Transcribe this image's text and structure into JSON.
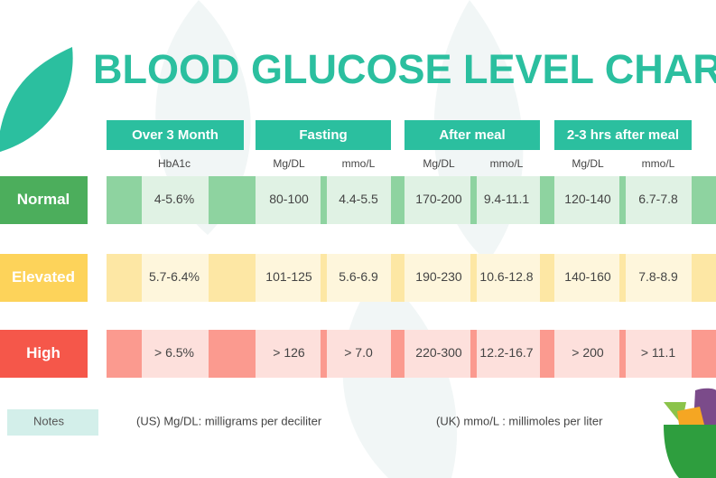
{
  "title": "BLOOD GLUCOSE LEVEL CHART",
  "column_groups": [
    {
      "label": "Over 3 Month",
      "subheaders": [
        "HbA1c"
      ]
    },
    {
      "label": "Fasting",
      "subheaders": [
        "Mg/DL",
        "mmo/L"
      ]
    },
    {
      "label": "After meal",
      "subheaders": [
        "Mg/DL",
        "mmo/L"
      ]
    },
    {
      "label": "2-3 hrs after meal",
      "subheaders": [
        "Mg/DL",
        "mmo/L"
      ]
    }
  ],
  "rows": [
    {
      "label": "Normal",
      "cells": [
        "4-5.6%",
        "80-100",
        "4.4-5.5",
        "170-200",
        "9.4-11.1",
        "120-140",
        "6.7-7.8"
      ]
    },
    {
      "label": "Elevated",
      "cells": [
        "5.7-6.4%",
        "101-125",
        "5.6-6.9",
        "190-230",
        "10.6-12.8",
        "140-160",
        "7.8-8.9"
      ]
    },
    {
      "label": "High",
      "cells": [
        "> 6.5%",
        "> 126",
        "> 7.0",
        "220-300",
        "12.2-16.7",
        "> 200",
        "> 11.1"
      ]
    }
  ],
  "notes": {
    "label": "Notes",
    "items": [
      "(US) Mg/DL: milligrams per deciliter",
      "(UK) mmo/L : millimoles per liter"
    ]
  }
}
